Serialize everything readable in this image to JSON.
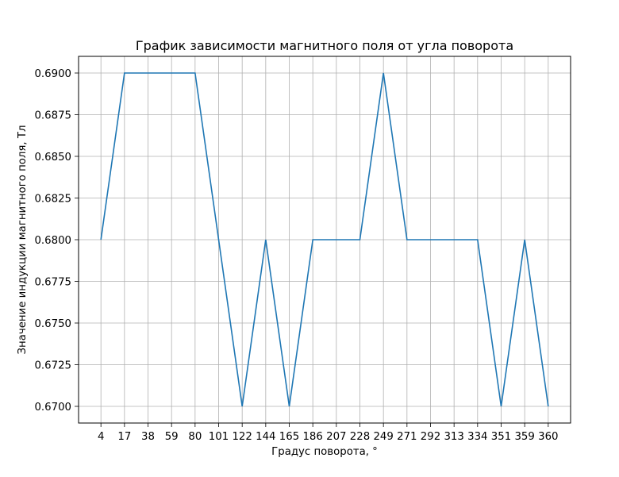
{
  "chart_data": {
    "type": "line",
    "title": "График зависимости магнитного поля от угла поворота",
    "xlabel": "Градус поворота, °",
    "ylabel": "Значение индукции магнитного поля, Тл",
    "categories": [
      "4",
      "17",
      "38",
      "59",
      "80",
      "101",
      "122",
      "144",
      "165",
      "186",
      "207",
      "228",
      "249",
      "271",
      "292",
      "313",
      "334",
      "351",
      "359",
      "360"
    ],
    "series": [
      {
        "values": [
          0.68,
          0.69,
          0.69,
          0.69,
          0.69,
          0.68,
          0.67,
          0.68,
          0.67,
          0.68,
          0.68,
          0.68,
          0.69,
          0.68,
          0.68,
          0.68,
          0.68,
          0.67,
          0.68,
          0.67
        ],
        "color": "#1f77b4"
      }
    ],
    "yticks": [
      "0.6700",
      "0.6725",
      "0.6750",
      "0.6775",
      "0.6800",
      "0.6825",
      "0.6850",
      "0.6875",
      "0.6900"
    ],
    "ylim": [
      0.669,
      0.691
    ],
    "grid": true,
    "legend": "none"
  }
}
